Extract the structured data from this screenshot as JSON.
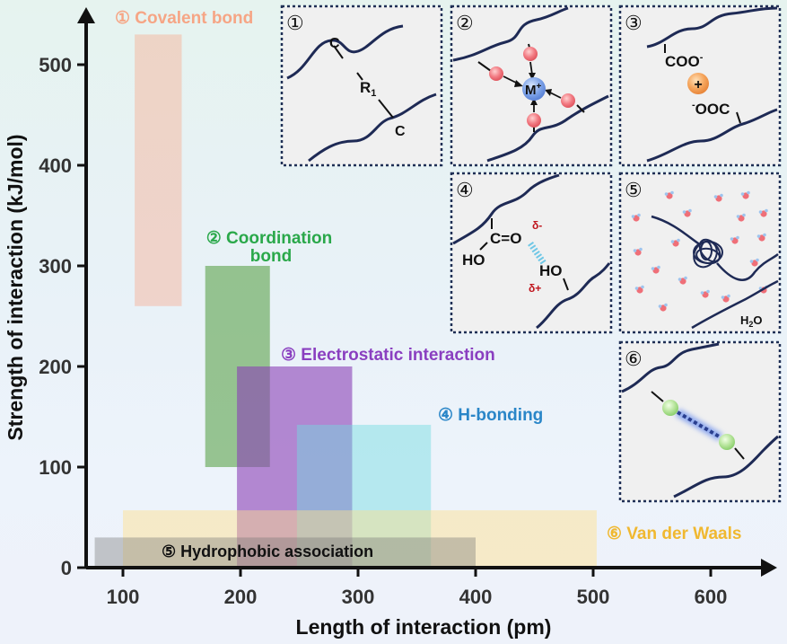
{
  "axes": {
    "xlabel": "Length of interaction (pm)",
    "ylabel": "Strength of interaction (kJ/mol)",
    "x_ticks": [
      "100",
      "200",
      "300",
      "400",
      "500",
      "600"
    ],
    "y_ticks": [
      "0",
      "100",
      "200",
      "300",
      "400",
      "500"
    ]
  },
  "regions": [
    {
      "key": "covalent",
      "label": "① Covalent bond",
      "color": "#f8a98d",
      "x": [
        110,
        150
      ],
      "y": [
        260,
        530
      ]
    },
    {
      "key": "coordination",
      "label_line1": "② Coordination",
      "label_line2": "bond",
      "color": "#4f9a3a",
      "x": [
        170,
        225
      ],
      "y": [
        100,
        300
      ]
    },
    {
      "key": "electrostatic",
      "label": "③ Electrostatic interaction",
      "color": "#8b3fb5",
      "x": [
        197,
        295
      ],
      "y": [
        0,
        200
      ]
    },
    {
      "key": "hbonding",
      "label": "④ H-bonding",
      "color": "#70dbe0",
      "x": [
        248,
        362
      ],
      "y": [
        0,
        142
      ]
    },
    {
      "key": "vdw",
      "label": "⑥ Van der Waals",
      "color": "#ffe08a",
      "x": [
        100,
        503
      ],
      "y": [
        0,
        57
      ]
    },
    {
      "key": "hydrophobic",
      "label": "⑤ Hydrophobic association",
      "color": "#777777",
      "x": [
        76,
        400
      ],
      "y": [
        0,
        30
      ]
    }
  ],
  "label_colors": {
    "covalent": "#f6a585",
    "coordination": "#2aa84a",
    "electrostatic": "#8a3fc0",
    "hbonding": "#2a86c8",
    "vdw": "#f0b830",
    "hydrophobic": "#111111"
  },
  "panels": {
    "p1": {
      "num": "①",
      "c_top": "C",
      "r1": "R",
      "r1_sub": "1",
      "c_bottom": "C"
    },
    "p2": {
      "num": "②",
      "metal": "M",
      "metal_sup": "+"
    },
    "p3": {
      "num": "③",
      "coo": "COO",
      "coo_sup": "-",
      "plus": "+",
      "ooc_pre": "-",
      "ooc": "OOC"
    },
    "p4": {
      "num": "④",
      "ceqo": "C=O",
      "ho_left": "HO",
      "ho_right": "HO",
      "delta_minus": "δ-",
      "delta_plus": "δ+"
    },
    "p5": {
      "num": "⑤",
      "water": "H",
      "water_sub": "2",
      "water_tail": "O"
    },
    "p6": {
      "num": "⑥"
    }
  }
}
